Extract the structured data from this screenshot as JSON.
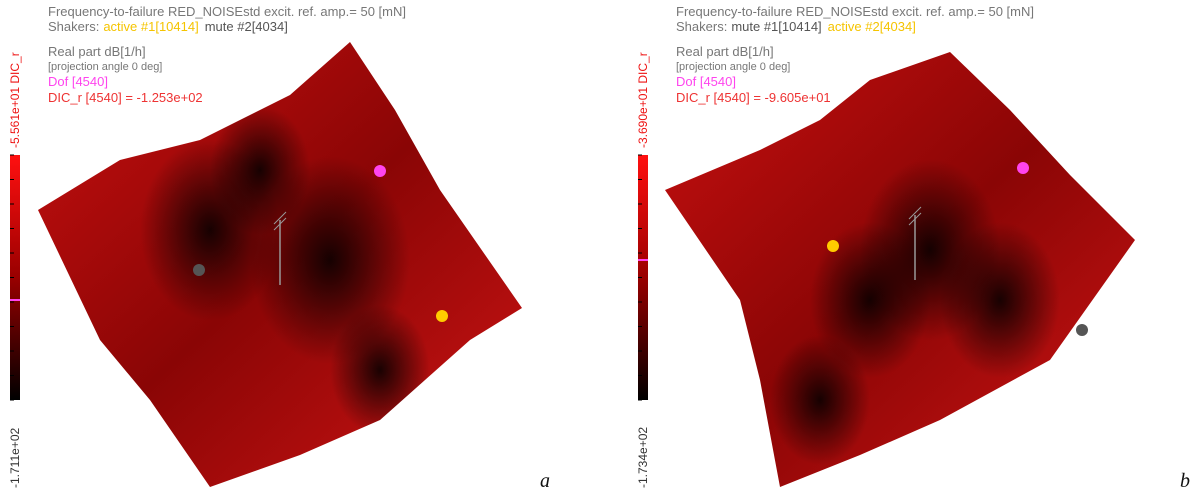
{
  "panels": [
    {
      "title": "Frequency-to-failure RED_NOISEstd excit. ref. amp.= 50 [mN]",
      "shakers_label": "Shakers:",
      "shakers": [
        {
          "text": "active #1[10414]",
          "color": "#f5c400"
        },
        {
          "text": "mute #2[4034]",
          "color": "#555555"
        }
      ],
      "quantity": "Real part dB[1/h]",
      "projection": "[projection angle 0 deg]",
      "dof": "Dof [4540]",
      "dic": "DIC_r [4540] = -1.253e+02",
      "colorbar_max": "-5.561e+01 DIC_r",
      "colorbar_min": "-1.711e+02",
      "label": "a"
    },
    {
      "title": "Frequency-to-failure RED_NOISEstd excit. ref. amp.= 50 [mN]",
      "shakers_label": "Shakers:",
      "shakers": [
        {
          "text": "mute #1[10414]",
          "color": "#555555"
        },
        {
          "text": "active #2[4034]",
          "color": "#f5c400"
        }
      ],
      "quantity": "Real part dB[1/h]",
      "projection": "[projection angle 0 deg]",
      "dof": "Dof [4540]",
      "dic": "DIC_r [4540] = -9.605e+01",
      "colorbar_max": "-3.690e+01 DIC_r",
      "colorbar_min": "-1.734e+02",
      "label": "b"
    }
  ]
}
